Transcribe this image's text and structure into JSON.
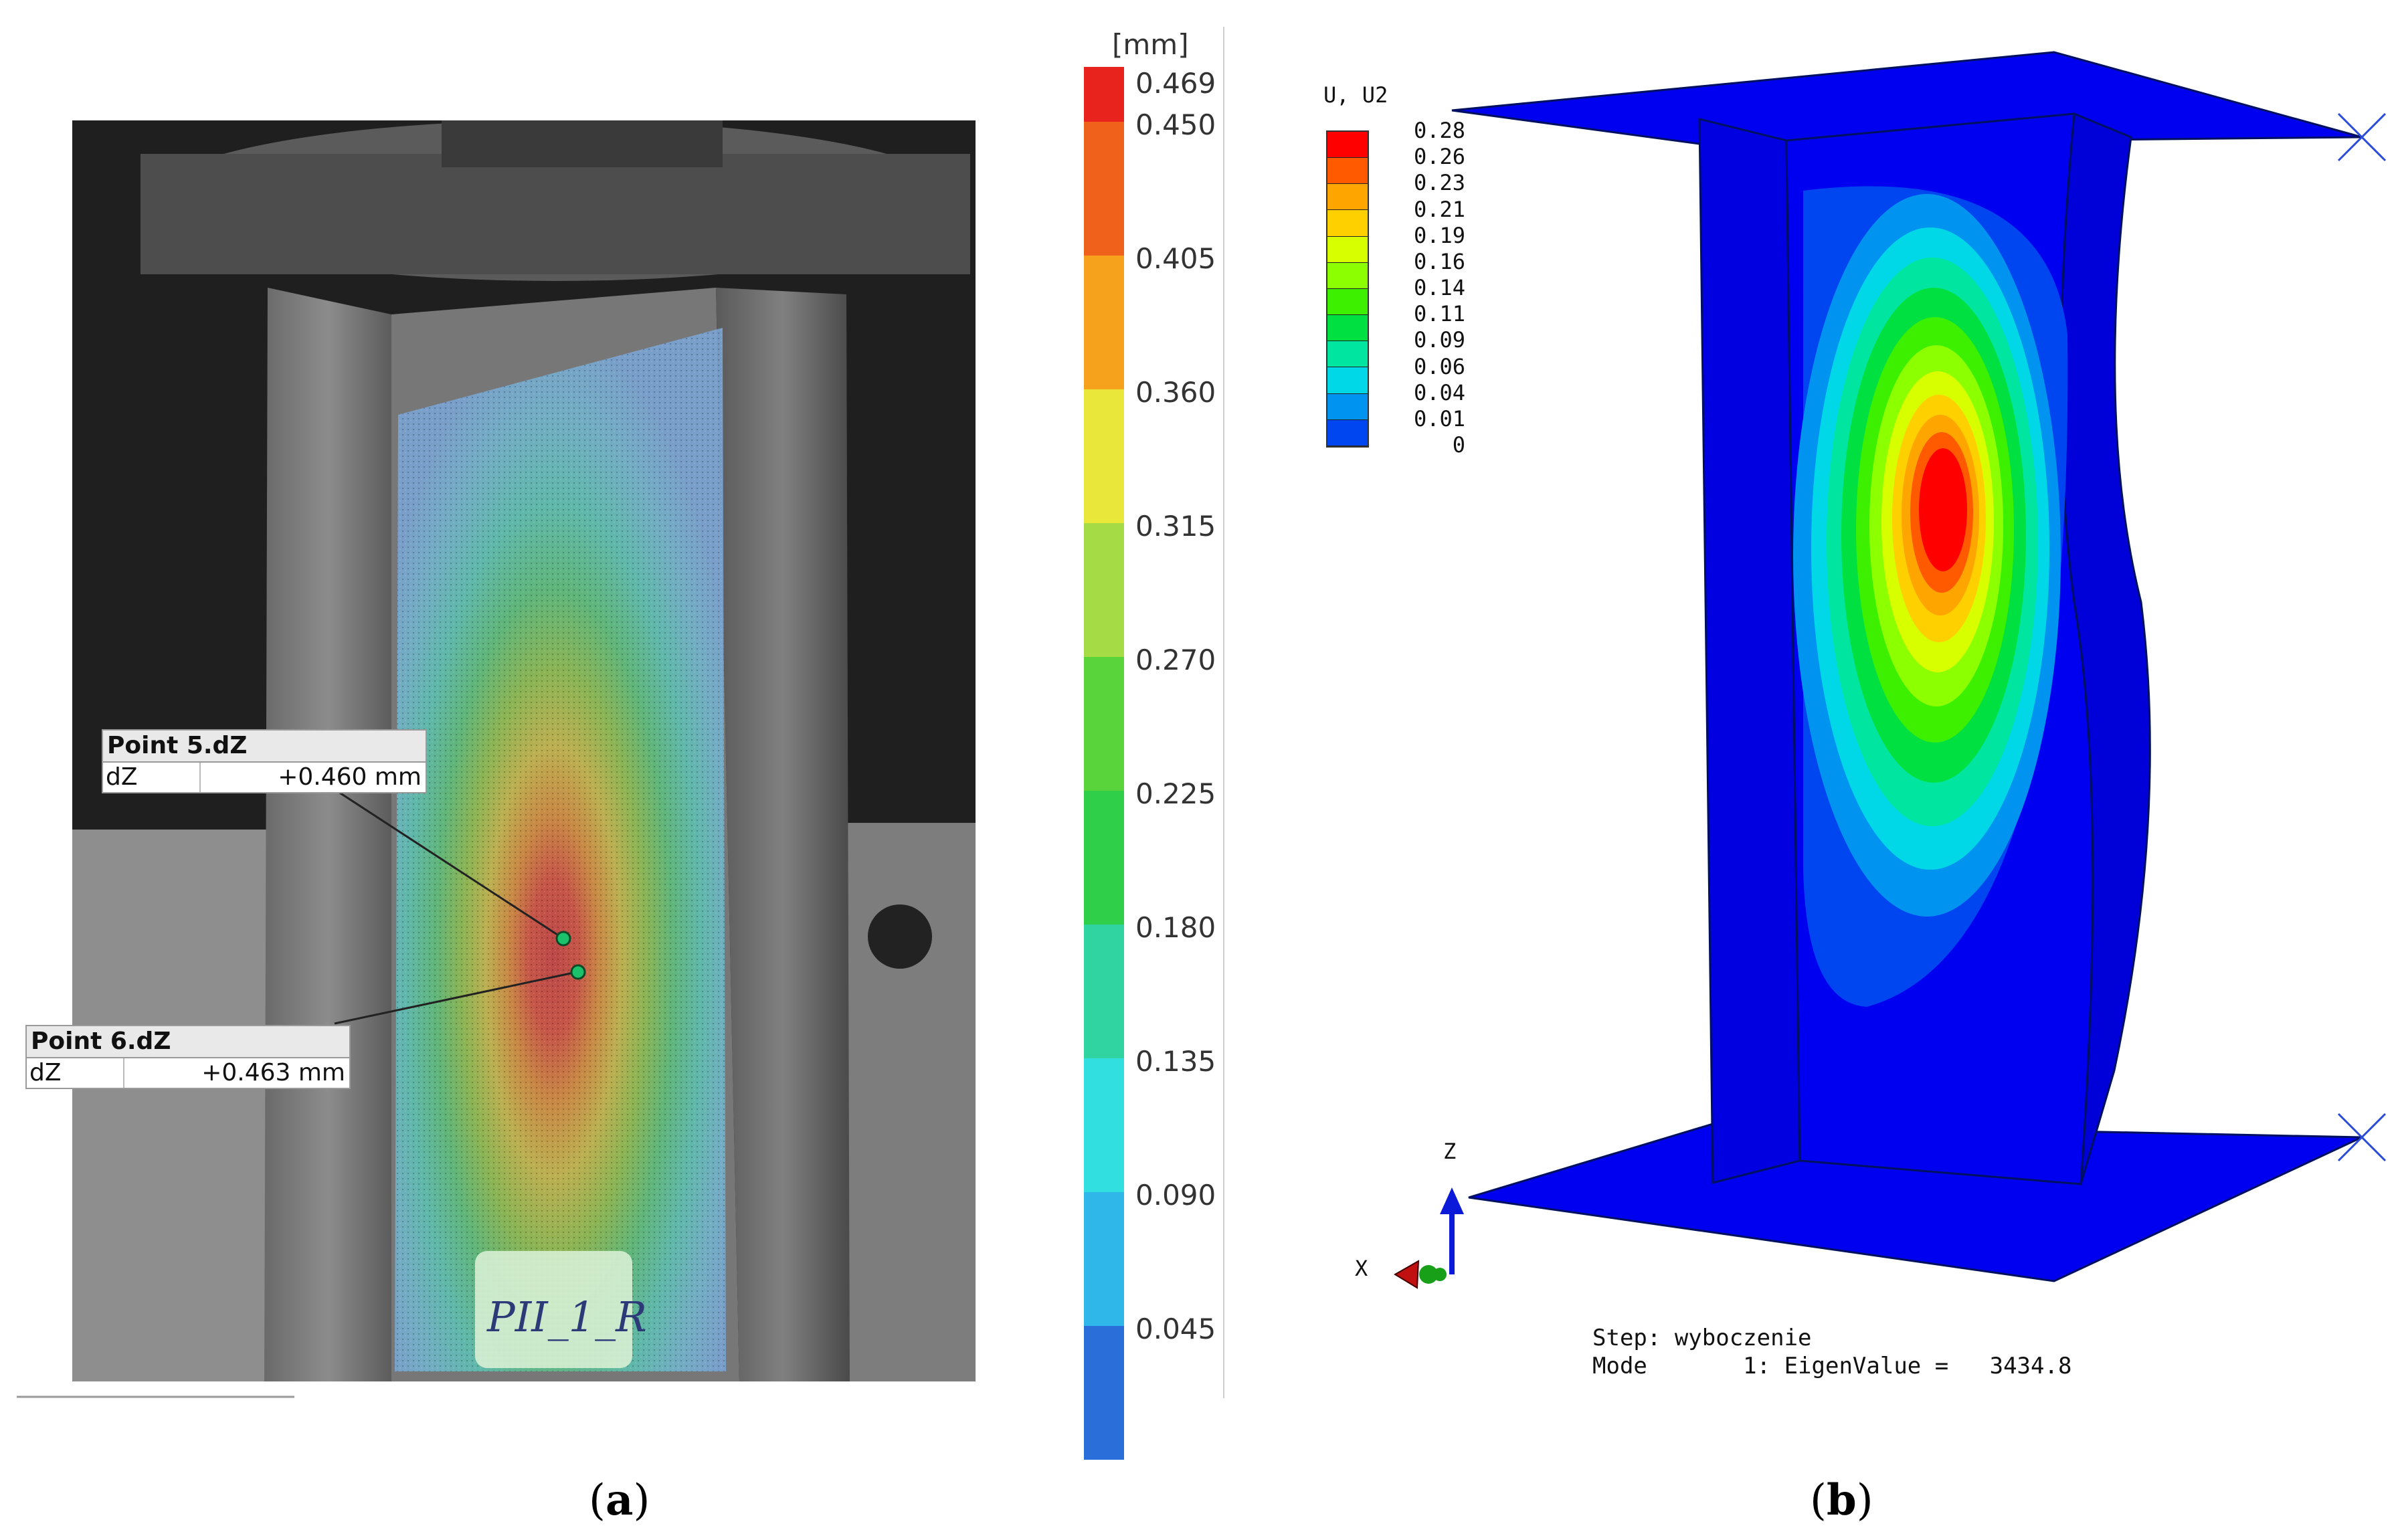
{
  "panel_a": {
    "caption": "a",
    "colorbar_unit": "[mm]",
    "colorbar_ticks": [
      "0.469",
      "0.450",
      "0.405",
      "0.360",
      "0.315",
      "0.270",
      "0.225",
      "0.180",
      "0.135",
      "0.090",
      "0.045"
    ],
    "colorbar_colors": [
      "#e8231e",
      "#f0621b",
      "#f7a21c",
      "#e9e83a",
      "#a5dc45",
      "#59d53b",
      "#2fcf49",
      "#2fd4a0",
      "#32dfe0",
      "#2fb7ea",
      "#2a6fd9"
    ],
    "point5": {
      "title": "Point 5.dZ",
      "key": "dZ",
      "value": "+0.460 mm"
    },
    "point6": {
      "title": "Point 6.dZ",
      "key": "dZ",
      "value": "+0.463 mm"
    },
    "specimen_label": "PII_1_R"
  },
  "panel_b": {
    "caption": "b",
    "legend_title": "U, U2",
    "legend_values": [
      "0.28",
      "0.26",
      "0.23",
      "0.21",
      "0.19",
      "0.16",
      "0.14",
      "0.11",
      "0.09",
      "0.06",
      "0.04",
      "0.01",
      "0"
    ],
    "legend_colors": [
      "#ff0000",
      "#ff5a00",
      "#ffa500",
      "#ffd000",
      "#d7ff00",
      "#8cff00",
      "#3cf000",
      "#00e040",
      "#00e6a0",
      "#00d8e8",
      "#0094f0",
      "#0046f0",
      "#0000f0"
    ],
    "axis_z": "Z",
    "axis_x": "X",
    "step_line": "Step: wyboczenie",
    "mode_line": "Mode       1: EigenValue =   3434.8"
  }
}
